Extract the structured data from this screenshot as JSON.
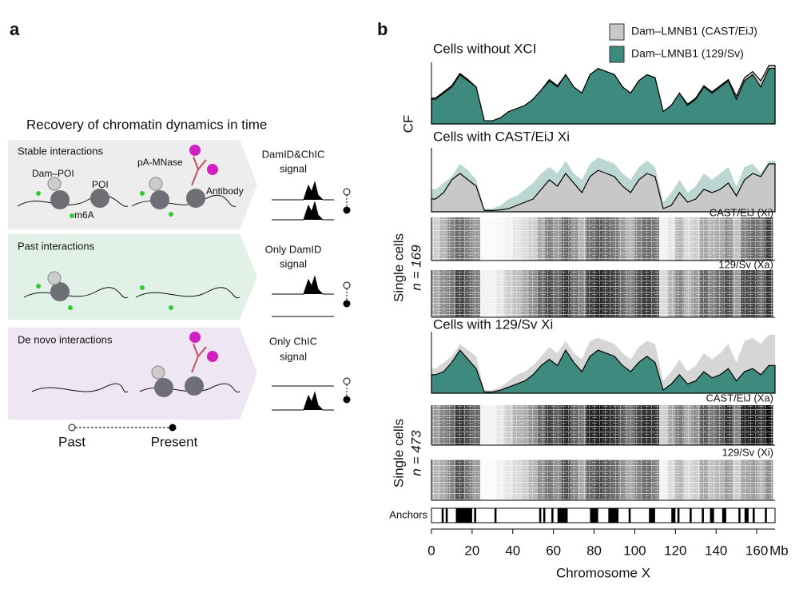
{
  "panel_a": {
    "label": "a",
    "title": "Recovery of chromatin dynamics in time",
    "rows": [
      {
        "name": "Stable interactions",
        "signal": [
          "DamID&ChIC",
          "signal"
        ]
      },
      {
        "name": "Past interactions",
        "signal": [
          "Only DamID",
          "signal"
        ]
      },
      {
        "name": "De novo interactions",
        "signal": [
          "Only ChIC",
          "signal"
        ]
      }
    ],
    "annotations": {
      "dam_poi": "Dam–POI",
      "poi": "POI",
      "pa_mnase": "pA-MNase",
      "antibody": "Antibody",
      "m6a": "m6A"
    },
    "timeline": [
      "Past",
      "Present"
    ]
  },
  "panel_b": {
    "label": "b",
    "legend": [
      {
        "name": "Dam–LMNB1 (CAST/EiJ)",
        "color": "#c8c8c8"
      },
      {
        "name": "Dam–LMNB1 (129/Sv)",
        "color": "#3e8a7e"
      }
    ],
    "y_label": "CF",
    "x_label": "Chromosome X",
    "x_unit": "Mb",
    "xlim": [
      0,
      169
    ],
    "ylim": [
      0,
      1
    ],
    "xticks": [
      0,
      20,
      40,
      60,
      80,
      100,
      120,
      140,
      160
    ],
    "x": [
      2,
      6,
      10,
      14,
      18,
      22,
      26,
      30,
      34,
      38,
      42,
      46,
      50,
      54,
      58,
      62,
      66,
      70,
      74,
      78,
      82,
      86,
      90,
      94,
      98,
      102,
      106,
      110,
      114,
      118,
      122,
      126,
      130,
      134,
      138,
      142,
      146,
      150,
      154,
      158,
      162,
      166
    ],
    "tracks": [
      {
        "title": "Cells without XCI",
        "cast": [
          0.42,
          0.52,
          0.62,
          0.82,
          0.72,
          0.6,
          0.05,
          0.05,
          0.1,
          0.2,
          0.25,
          0.3,
          0.4,
          0.55,
          0.72,
          0.62,
          0.8,
          0.6,
          0.5,
          0.8,
          0.9,
          0.85,
          0.8,
          0.6,
          0.5,
          0.7,
          0.8,
          0.75,
          0.2,
          0.3,
          0.5,
          0.32,
          0.42,
          0.62,
          0.52,
          0.62,
          0.72,
          0.45,
          0.75,
          0.85,
          0.7,
          0.95
        ],
        "s129": [
          0.4,
          0.5,
          0.6,
          0.8,
          0.7,
          0.6,
          0.05,
          0.05,
          0.1,
          0.2,
          0.25,
          0.3,
          0.4,
          0.55,
          0.7,
          0.6,
          0.8,
          0.6,
          0.5,
          0.8,
          0.9,
          0.85,
          0.8,
          0.6,
          0.5,
          0.7,
          0.8,
          0.75,
          0.2,
          0.3,
          0.5,
          0.3,
          0.4,
          0.6,
          0.5,
          0.6,
          0.7,
          0.4,
          0.7,
          0.8,
          0.6,
          0.9
        ]
      },
      {
        "title": "Cells with CAST/EiJ Xi",
        "cast": [
          0.2,
          0.3,
          0.5,
          0.6,
          0.5,
          0.4,
          0.02,
          0.02,
          0.03,
          0.05,
          0.1,
          0.15,
          0.2,
          0.35,
          0.5,
          0.4,
          0.6,
          0.45,
          0.3,
          0.55,
          0.65,
          0.6,
          0.55,
          0.4,
          0.3,
          0.5,
          0.6,
          0.55,
          0.05,
          0.1,
          0.3,
          0.15,
          0.2,
          0.35,
          0.3,
          0.35,
          0.45,
          0.25,
          0.5,
          0.6,
          0.55,
          0.75
        ],
        "s129": [
          0.35,
          0.45,
          0.55,
          0.75,
          0.65,
          0.5,
          0.05,
          0.05,
          0.1,
          0.2,
          0.25,
          0.35,
          0.45,
          0.6,
          0.7,
          0.6,
          0.8,
          0.6,
          0.5,
          0.75,
          0.85,
          0.8,
          0.75,
          0.6,
          0.5,
          0.7,
          0.8,
          0.7,
          0.15,
          0.3,
          0.5,
          0.3,
          0.4,
          0.6,
          0.5,
          0.6,
          0.7,
          0.4,
          0.7,
          0.75,
          0.6,
          0.8
        ]
      },
      {
        "title": "Cells with 129/Sv Xi",
        "cast": [
          0.4,
          0.5,
          0.6,
          0.8,
          0.7,
          0.6,
          0.05,
          0.05,
          0.1,
          0.2,
          0.3,
          0.35,
          0.45,
          0.6,
          0.75,
          0.65,
          0.85,
          0.65,
          0.55,
          0.85,
          0.9,
          0.85,
          0.8,
          0.65,
          0.55,
          0.75,
          0.85,
          0.8,
          0.2,
          0.35,
          0.55,
          0.35,
          0.45,
          0.65,
          0.55,
          0.65,
          0.8,
          0.5,
          0.85,
          0.9,
          0.8,
          0.95
        ],
        "s129": [
          0.3,
          0.35,
          0.5,
          0.7,
          0.55,
          0.4,
          0.02,
          0.02,
          0.05,
          0.1,
          0.15,
          0.2,
          0.3,
          0.45,
          0.55,
          0.45,
          0.7,
          0.5,
          0.35,
          0.6,
          0.7,
          0.65,
          0.6,
          0.45,
          0.35,
          0.5,
          0.6,
          0.5,
          0.05,
          0.15,
          0.3,
          0.15,
          0.2,
          0.35,
          0.25,
          0.3,
          0.4,
          0.2,
          0.35,
          0.4,
          0.3,
          0.45
        ]
      }
    ],
    "single_cells": [
      {
        "label": "Single cells",
        "n": "n = 169",
        "rows": [
          "CAST/EiJ (Xi)",
          "129/Sv (Xa)"
        ]
      },
      {
        "label": "Single cells",
        "n": "n = 473",
        "rows": [
          "CAST/EiJ (Xa)",
          "129/Sv (Xi)"
        ]
      }
    ],
    "anchors_label": "Anchors",
    "anchors": [
      [
        5,
        6
      ],
      [
        7,
        8
      ],
      [
        12,
        20
      ],
      [
        21,
        22
      ],
      [
        31,
        32
      ],
      [
        53,
        54
      ],
      [
        55,
        56
      ],
      [
        59,
        60
      ],
      [
        62,
        67
      ],
      [
        78,
        82
      ],
      [
        87,
        92
      ],
      [
        97,
        98
      ],
      [
        107,
        110
      ],
      [
        118,
        120
      ],
      [
        121,
        122
      ],
      [
        127,
        128
      ],
      [
        133,
        134
      ],
      [
        137,
        139
      ],
      [
        143,
        145
      ],
      [
        151,
        152
      ],
      [
        154,
        156
      ],
      [
        158,
        159
      ],
      [
        164,
        165
      ]
    ]
  }
}
